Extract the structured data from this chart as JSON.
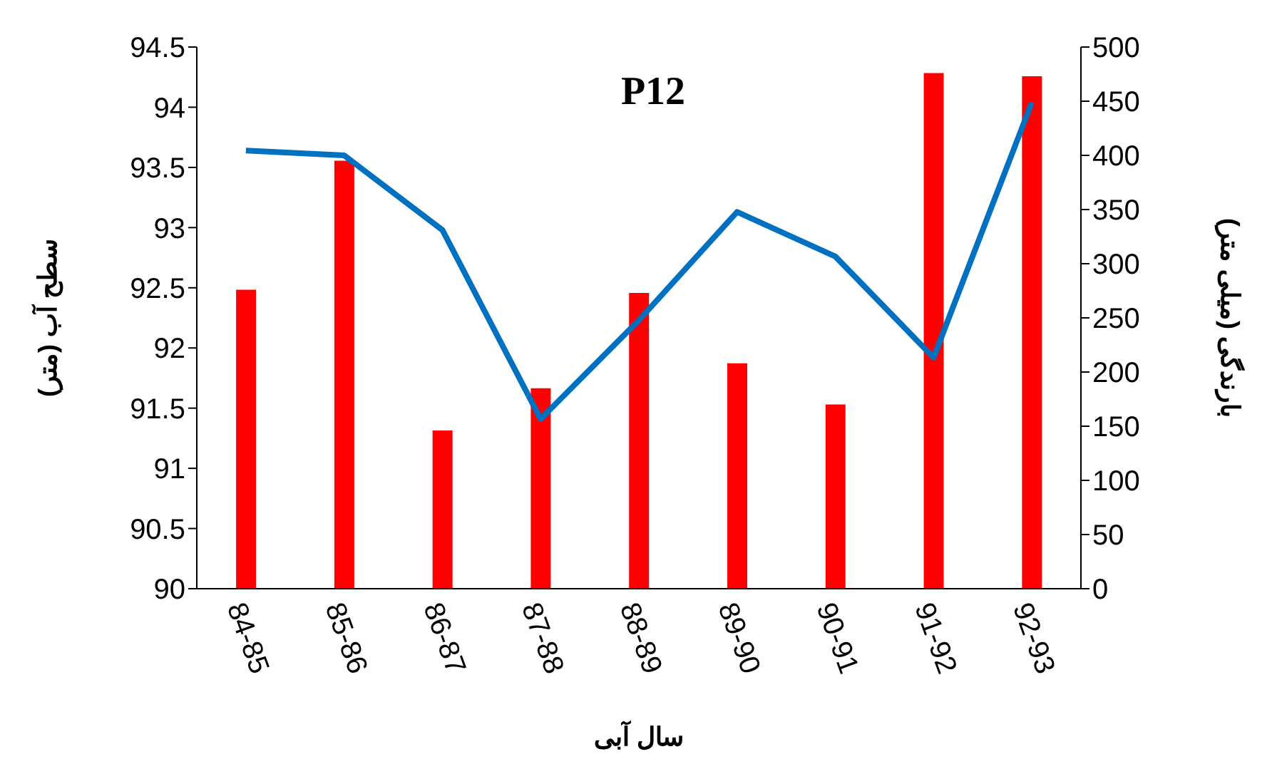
{
  "chart_data": {
    "type": "bar",
    "title": "P12",
    "xlabel": "سال آبی",
    "ylabel": "سطح آب (متر)",
    "y2label": "بارندگی (میلی متر)",
    "categories": [
      "84-85",
      "85-86",
      "86-87",
      "87-88",
      "88-89",
      "89-90",
      "90-91",
      "91-92",
      "92-93"
    ],
    "series": [
      {
        "axis": "y2",
        "color": "#ff0000",
        "values": [
          276,
          395,
          146,
          185,
          273,
          208,
          170,
          476,
          473
        ]
      },
      {
        "type": "line",
        "axis": "y",
        "color": "#0070c0",
        "values": [
          93.64,
          93.6,
          92.98,
          91.41,
          92.23,
          93.13,
          92.76,
          91.92,
          94.04
        ]
      }
    ],
    "ylim": [
      90,
      94.5
    ],
    "yticks": [
      90,
      90.5,
      91,
      91.5,
      92,
      92.5,
      93,
      93.5,
      94,
      94.5
    ],
    "y2lim": [
      0,
      500
    ],
    "y2ticks": [
      0,
      50,
      100,
      150,
      200,
      250,
      300,
      350,
      400,
      450,
      500
    ],
    "grid": false,
    "legend": false,
    "marker": "none",
    "line_style": "solid"
  }
}
